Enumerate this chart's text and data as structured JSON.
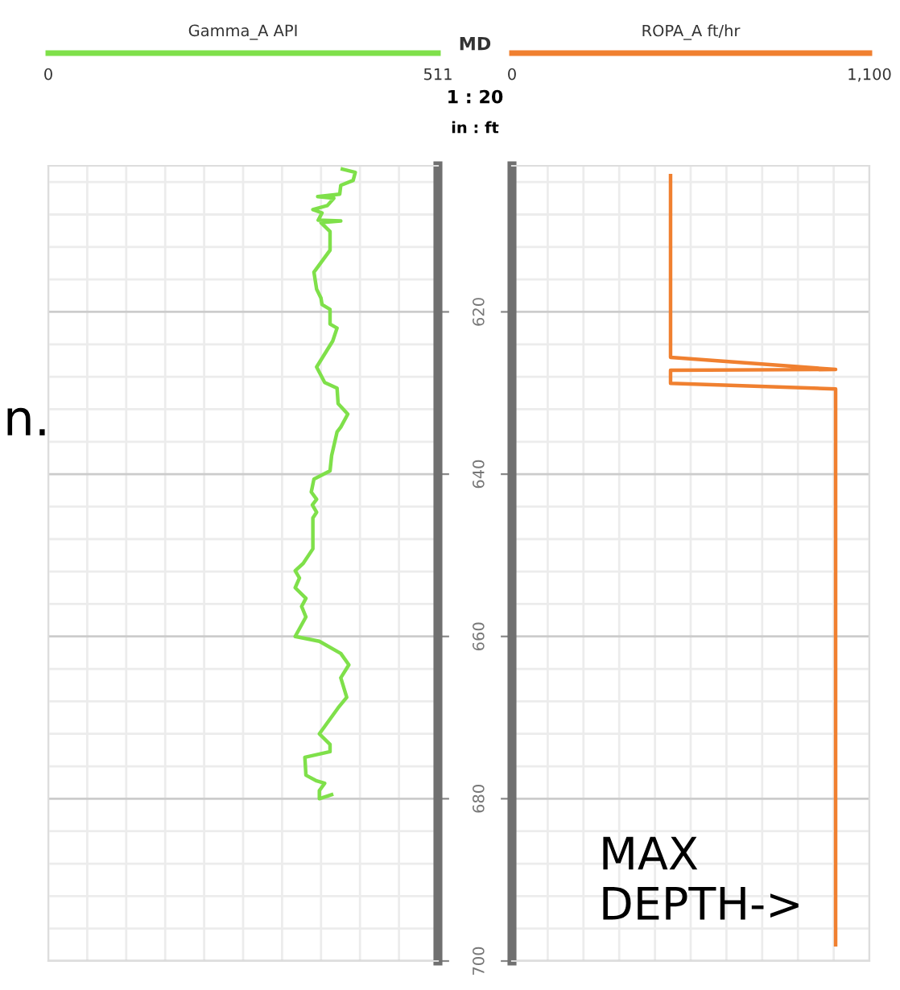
{
  "chart_data": [
    {
      "type": "line",
      "legend": "top",
      "grid": true,
      "tick_labels": "x",
      "series": [
        {
          "name": "Gamma_A API",
          "color": "#7fe04a",
          "x": [
            385.7,
            402.6,
            399.8,
            383.6,
            382.2,
            353.3,
            374.5,
            366.0,
            347.0,
            359.0,
            354.0,
            383.6,
            357.6,
            369.5,
            369.5,
            348.4,
            351.9,
            357.6,
            359.0,
            369.5,
            369.5,
            378.7,
            373.0,
            351.9,
            362.5,
            378.7,
            380.1,
            392.8,
            383.6,
            378.7,
            371.6,
            369.5,
            348.4,
            344.9,
            351.9,
            346.3,
            351.9,
            347.0,
            347.0,
            334.3,
            323.8,
            329.4,
            323.8,
            337.9,
            332.2,
            337.9,
            323.8,
            355.5,
            383.6,
            394.2,
            383.6,
            391.4,
            380.1,
            355.5,
            369.5,
            369.5,
            336.5,
            337.9,
            351.9,
            362.5,
            355.5,
            355.5,
            371.6
          ],
          "values": [
            602.4,
            602.8,
            603.8,
            604.4,
            605.5,
            605.8,
            606.0,
            606.9,
            607.4,
            607.8,
            608.7,
            608.8,
            609.0,
            610.1,
            612.4,
            615.1,
            617.2,
            618.3,
            619.1,
            619.7,
            621.5,
            622.0,
            623.6,
            626.8,
            628.7,
            629.4,
            631.3,
            632.6,
            634.2,
            634.8,
            637.7,
            639.6,
            640.6,
            642.2,
            643.1,
            643.8,
            644.7,
            645.4,
            649.2,
            651.0,
            651.9,
            652.8,
            654.0,
            655.3,
            656.3,
            657.6,
            660.0,
            660.6,
            662.1,
            663.5,
            665.1,
            667.5,
            668.8,
            672.0,
            673.3,
            674.2,
            674.9,
            677.1,
            677.8,
            678.1,
            679.0,
            680.0,
            679.5
          ]
        }
      ],
      "xlim": [
        0,
        511
      ],
      "xticks": [
        0,
        {
          "value": 51.1,
          "label": null
        },
        {
          "value": 102.2,
          "label": null
        },
        {
          "value": 153.3,
          "label": null
        },
        {
          "value": 204.4,
          "label": null
        },
        {
          "value": 255.5,
          "label": null
        },
        {
          "value": 306.6,
          "label": null
        },
        {
          "value": 357.7,
          "label": null
        },
        {
          "value": 408.8,
          "label": null
        },
        {
          "value": 459.9,
          "label": null
        },
        511
      ],
      "ylim": [
        700,
        602
      ],
      "yticks": [
        {
          "value": 604,
          "label": null
        },
        {
          "value": 608,
          "label": null
        },
        {
          "value": 612,
          "label": null
        },
        {
          "value": 616,
          "label": null
        },
        620,
        {
          "value": 624,
          "label": null
        },
        {
          "value": 628,
          "label": null
        },
        {
          "value": 632,
          "label": null
        },
        {
          "value": 636,
          "label": null
        },
        640,
        {
          "value": 644,
          "label": null
        },
        {
          "value": 648,
          "label": null
        },
        {
          "value": 652,
          "label": null
        },
        {
          "value": 656,
          "label": null
        },
        660,
        {
          "value": 664,
          "label": null
        },
        {
          "value": 668,
          "label": null
        },
        {
          "value": 672,
          "label": null
        },
        {
          "value": 676,
          "label": null
        },
        680,
        {
          "value": 684,
          "label": null
        },
        {
          "value": 688,
          "label": null
        },
        {
          "value": 692,
          "label": null
        },
        {
          "value": 696,
          "label": null
        },
        700
      ],
      "annotations": [
        "n."
      ]
    },
    {
      "type": "line",
      "legend": "top",
      "grid": true,
      "ylabel": "MD",
      "series": [
        {
          "name": "ROPA_A ft/hr",
          "color": "#f08030",
          "x": [
            488,
            488,
            996,
            488,
            488,
            996,
            996
          ],
          "values": [
            603.2,
            625.6,
            627.1,
            627.2,
            628.8,
            629.5,
            698
          ]
        }
      ],
      "xlim": [
        0,
        1100
      ],
      "xticks": [
        0,
        {
          "value": 110,
          "label": null
        },
        {
          "value": 220,
          "label": null
        },
        {
          "value": 330,
          "label": null
        },
        {
          "value": 440,
          "label": null
        },
        {
          "value": 550,
          "label": null
        },
        {
          "value": 660,
          "label": null
        },
        {
          "value": 770,
          "label": null
        },
        {
          "value": 880,
          "label": null
        },
        {
          "value": 990,
          "label": null
        },
        {
          "value": 1100,
          "label": "1,100"
        }
      ],
      "ylim": [
        700,
        602
      ],
      "yticks": [
        {
          "value": 604,
          "label": null
        },
        {
          "value": 608,
          "label": null
        },
        {
          "value": 612,
          "label": null
        },
        {
          "value": 616,
          "label": null
        },
        620,
        {
          "value": 624,
          "label": null
        },
        {
          "value": 628,
          "label": null
        },
        {
          "value": 632,
          "label": null
        },
        {
          "value": 636,
          "label": null
        },
        640,
        {
          "value": 644,
          "label": null
        },
        {
          "value": 648,
          "label": null
        },
        {
          "value": 652,
          "label": null
        },
        {
          "value": 656,
          "label": null
        },
        660,
        {
          "value": 664,
          "label": null
        },
        {
          "value": 668,
          "label": null
        },
        {
          "value": 672,
          "label": null
        },
        {
          "value": 676,
          "label": null
        },
        680,
        {
          "value": 684,
          "label": null
        },
        {
          "value": 688,
          "label": null
        },
        {
          "value": 692,
          "label": null
        },
        {
          "value": 696,
          "label": null
        },
        700
      ],
      "annotations": [
        "1 : 20",
        "in : ft",
        "MAX DEPTH->"
      ]
    }
  ]
}
